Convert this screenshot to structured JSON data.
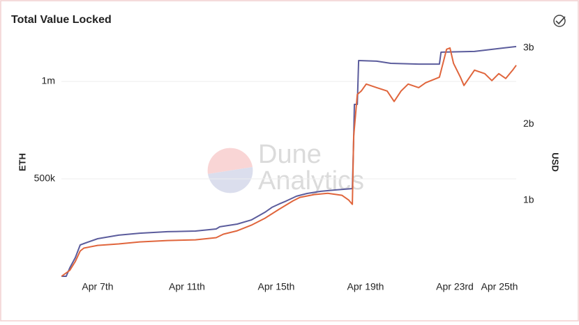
{
  "chart_data": {
    "type": "line",
    "title": "Total Value Locked",
    "watermark": [
      "Dune",
      "Analytics"
    ],
    "xlim": [
      5.375,
      25.75
    ],
    "xticks": [
      {
        "value": 7,
        "label": "Apr 7th"
      },
      {
        "value": 11,
        "label": "Apr 11th"
      },
      {
        "value": 15,
        "label": "Apr 15th"
      },
      {
        "value": 19,
        "label": "Apr 19th"
      },
      {
        "value": 23,
        "label": "Apr 23rd"
      },
      {
        "value": 25,
        "label": "Apr 25th"
      }
    ],
    "ylim": [
      0,
      1250000
    ],
    "yticks": [
      {
        "value": 500000,
        "label": "500k"
      },
      {
        "value": 1000000,
        "label": "1m"
      }
    ],
    "y2lim": [
      0,
      3200000000
    ],
    "y2ticks": [
      {
        "value": 1000000000,
        "label": "1b"
      },
      {
        "value": 2000000000,
        "label": "2b"
      },
      {
        "value": 3000000000,
        "label": "3b"
      }
    ],
    "grid": true,
    "series": [
      {
        "name": "ETH",
        "color": "#5b5c9c",
        "axis": "y",
        "x": [
          5.38,
          5.59,
          5.75,
          6.0,
          6.22,
          6.38,
          7.0,
          7.94,
          8.88,
          10.13,
          11.38,
          12.31,
          12.47,
          13.25,
          13.88,
          14.5,
          14.81,
          15.13,
          15.44,
          15.91,
          16.38,
          17.0,
          17.63,
          18.41,
          18.47,
          18.5,
          18.63,
          18.69,
          19.5,
          20.13,
          21.38,
          22.31,
          22.38,
          23.88,
          25.13,
          25.75
        ],
        "values": [
          0,
          0,
          43000,
          96000,
          161000,
          168000,
          193000,
          211000,
          221000,
          229000,
          232000,
          243000,
          254000,
          268000,
          289000,
          329000,
          354000,
          371000,
          386000,
          411000,
          425000,
          436000,
          443000,
          450000,
          704000,
          882000,
          882000,
          1107000,
          1104000,
          1093000,
          1089000,
          1089000,
          1150000,
          1154000,
          1171000,
          1179000
        ]
      },
      {
        "name": "USD",
        "color": "#e0653c",
        "axis": "y2",
        "x": [
          5.38,
          5.75,
          6.0,
          6.22,
          6.38,
          7.0,
          7.94,
          8.88,
          10.13,
          11.38,
          12.31,
          12.63,
          13.25,
          13.88,
          14.5,
          15.13,
          15.75,
          16.06,
          16.69,
          17.31,
          17.94,
          18.25,
          18.41,
          18.47,
          18.63,
          18.81,
          19.03,
          19.5,
          19.97,
          20.28,
          20.59,
          20.91,
          21.38,
          21.69,
          22.31,
          22.63,
          22.78,
          22.94,
          23.25,
          23.41,
          23.88,
          24.34,
          24.66,
          24.97,
          25.28,
          25.59,
          25.75
        ],
        "values": [
          0,
          78000000,
          196000000,
          333000000,
          370000000,
          406000000,
          425000000,
          452000000,
          470000000,
          479000000,
          507000000,
          553000000,
          598000000,
          671000000,
          763000000,
          881000000,
          991000000,
          1037000000,
          1073000000,
          1091000000,
          1064000000,
          1000000000,
          945000000,
          1840000000,
          2388000000,
          2434000000,
          2525000000,
          2479000000,
          2434000000,
          2297000000,
          2434000000,
          2525000000,
          2479000000,
          2543000000,
          2616000000,
          2982000000,
          3000000000,
          2799000000,
          2616000000,
          2507000000,
          2708000000,
          2662000000,
          2571000000,
          2662000000,
          2598000000,
          2708000000,
          2772000000
        ]
      }
    ]
  }
}
